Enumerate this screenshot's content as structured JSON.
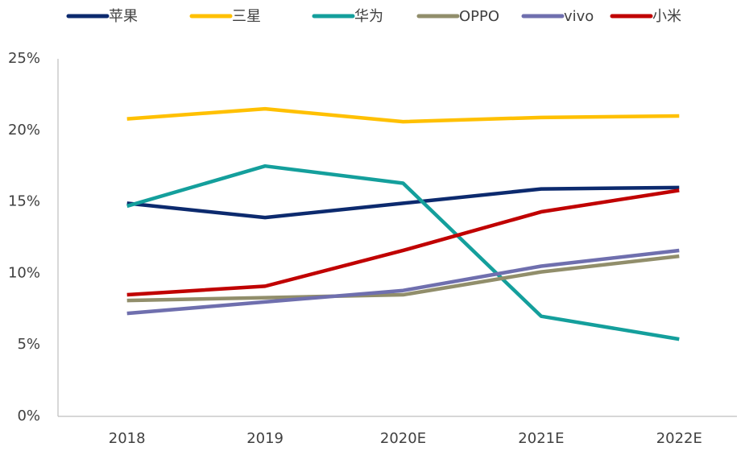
{
  "chart_data": {
    "type": "line",
    "categories": [
      "2018",
      "2019",
      "2020E",
      "2021E",
      "2022E"
    ],
    "series": [
      {
        "name": "苹果",
        "color": "#0c2a6e",
        "values": [
          14.9,
          13.9,
          14.9,
          15.9,
          16.0
        ]
      },
      {
        "name": "三星",
        "color": "#ffc000",
        "values": [
          20.8,
          21.5,
          20.6,
          20.9,
          21.0
        ]
      },
      {
        "name": "华为",
        "color": "#149f9c",
        "values": [
          14.7,
          17.5,
          16.3,
          7.0,
          5.4
        ]
      },
      {
        "name": "OPPO",
        "color": "#918e6b",
        "values": [
          8.1,
          8.3,
          8.5,
          10.1,
          11.2
        ]
      },
      {
        "name": "vivo",
        "color": "#6f6fae",
        "values": [
          7.2,
          8.0,
          8.8,
          10.5,
          11.6
        ]
      },
      {
        "name": "小米",
        "color": "#c00000",
        "values": [
          8.5,
          9.1,
          11.6,
          14.3,
          15.8
        ]
      }
    ],
    "ylim": [
      0,
      25
    ],
    "yticks": [
      {
        "value": 0,
        "label": "0%"
      },
      {
        "value": 5,
        "label": "5%"
      },
      {
        "value": 10,
        "label": "10%"
      },
      {
        "value": 15,
        "label": "15%"
      },
      {
        "value": 20,
        "label": "20%"
      },
      {
        "value": 25,
        "label": "25%"
      }
    ],
    "legend": "top",
    "grid": false
  }
}
